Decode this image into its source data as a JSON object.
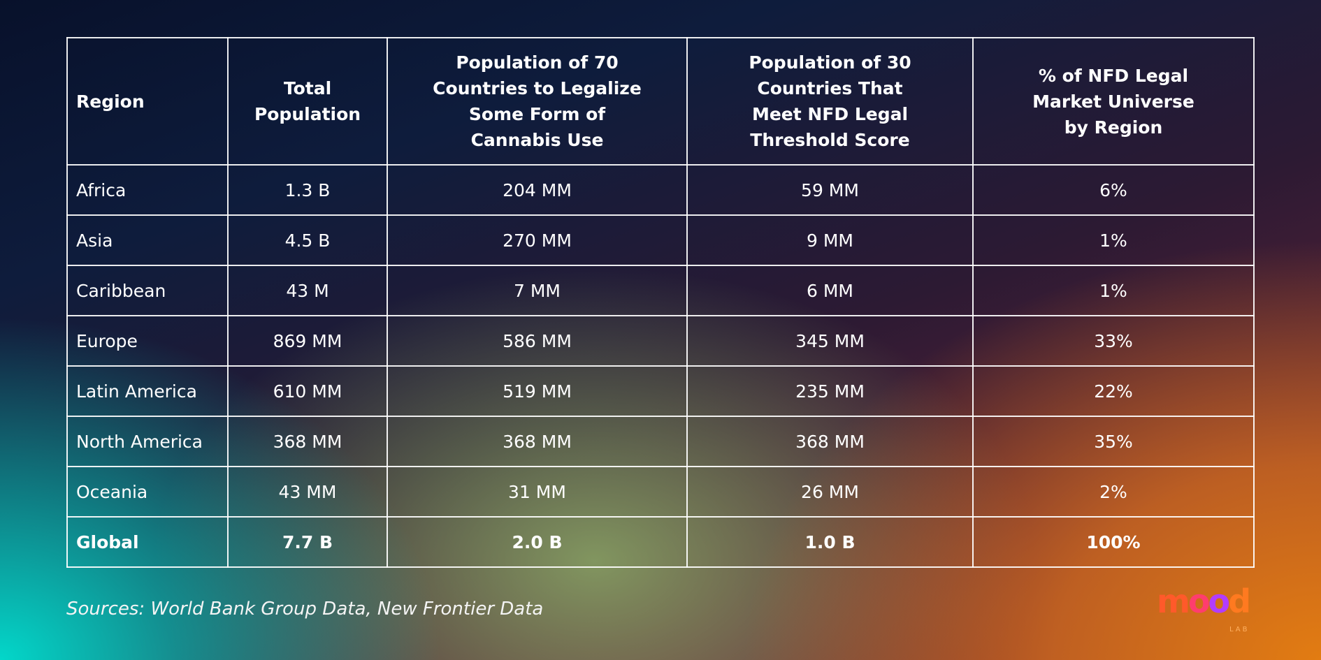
{
  "table": {
    "headers": [
      "Region",
      "Total\nPopulation",
      "Population of 70\nCountries to Legalize\nSome Form of\nCannabis Use",
      "Population of 30\nCountries That\nMeet NFD Legal\nThreshold Score",
      "% of NFD Legal\nMarket Universe\nby Region"
    ],
    "rows": [
      [
        "Africa",
        "1.3 B",
        "204 MM",
        "59 MM",
        "6%"
      ],
      [
        "Asia",
        "4.5 B",
        "270 MM",
        "9 MM",
        "1%"
      ],
      [
        "Caribbean",
        "43 M",
        "7 MM",
        "6 MM",
        "1%"
      ],
      [
        "Europe",
        "869 MM",
        "586 MM",
        "345 MM",
        "33%"
      ],
      [
        "Latin America",
        "610 MM",
        "519 MM",
        "235 MM",
        "22%"
      ],
      [
        "North America",
        "368 MM",
        "368 MM",
        "368 MM",
        "35%"
      ],
      [
        "Oceania",
        "43 MM",
        "31 MM",
        "26 MM",
        "2%"
      ]
    ],
    "total": [
      "Global",
      "7.7 B",
      "2.0 B",
      "1.0 B",
      "100%"
    ]
  },
  "sources": "Sources: World Bank Group Data, New Frontier Data",
  "logo": {
    "text": "mood",
    "sub": "LAB"
  }
}
